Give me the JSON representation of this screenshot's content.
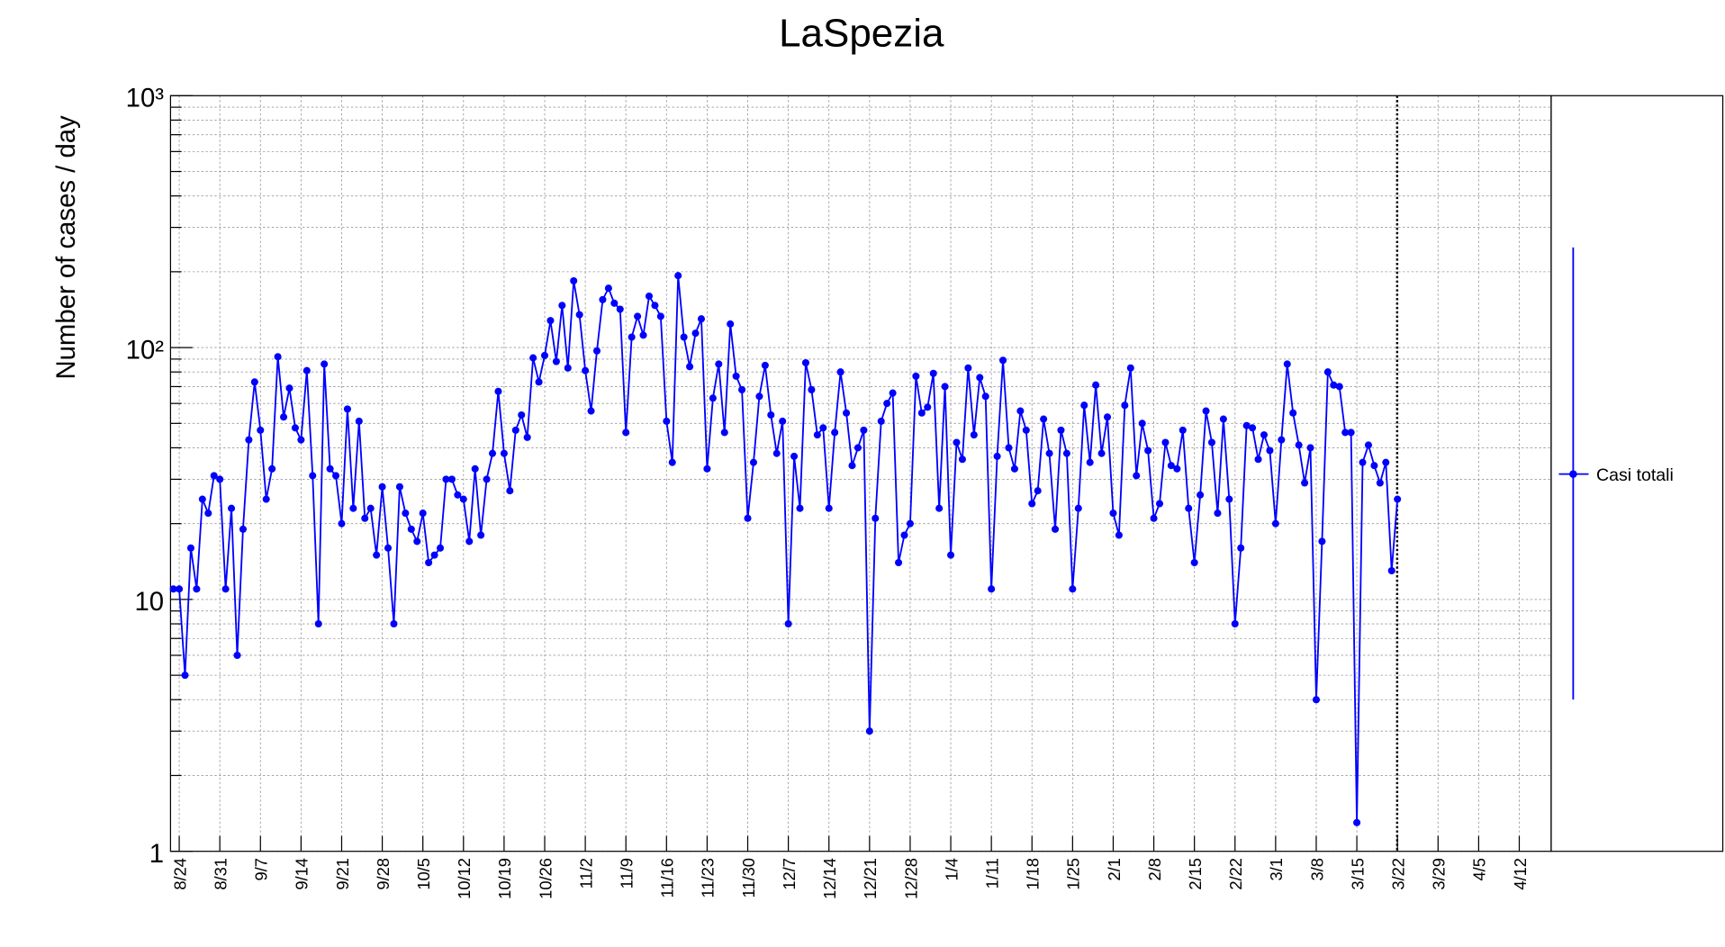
{
  "chart_data": {
    "type": "line",
    "title": "LaSpezia",
    "y_label": "Number of cases / day",
    "log_y": true,
    "grid": true,
    "ylim": [
      1,
      1000
    ],
    "yticks": [
      1,
      10,
      {
        "value": 100,
        "label": "10²"
      },
      {
        "value": 1000,
        "label": "10³"
      }
    ],
    "categories": [
      null,
      "8/24",
      null,
      null,
      null,
      null,
      null,
      null,
      "8/31",
      null,
      null,
      null,
      null,
      null,
      null,
      "9/7",
      null,
      null,
      null,
      null,
      null,
      null,
      "9/14",
      null,
      null,
      null,
      null,
      null,
      null,
      "9/21",
      null,
      null,
      null,
      null,
      null,
      null,
      "9/28",
      null,
      null,
      null,
      null,
      null,
      null,
      "10/5",
      null,
      null,
      null,
      null,
      null,
      null,
      "10/12",
      null,
      null,
      null,
      null,
      null,
      null,
      "10/19",
      null,
      null,
      null,
      null,
      null,
      null,
      "10/26",
      null,
      null,
      null,
      null,
      null,
      null,
      "11/2",
      null,
      null,
      null,
      null,
      null,
      null,
      "11/9",
      null,
      null,
      null,
      null,
      null,
      null,
      "11/16",
      null,
      null,
      null,
      null,
      null,
      null,
      "11/23",
      null,
      null,
      null,
      null,
      null,
      null,
      "11/30",
      null,
      null,
      null,
      null,
      null,
      null,
      "12/7",
      null,
      null,
      null,
      null,
      null,
      null,
      "12/14",
      null,
      null,
      null,
      null,
      null,
      null,
      "12/21",
      null,
      null,
      null,
      null,
      null,
      null,
      "12/28",
      null,
      null,
      null,
      null,
      null,
      null,
      "1/4",
      null,
      null,
      null,
      null,
      null,
      null,
      "1/11",
      null,
      null,
      null,
      null,
      null,
      null,
      "1/18",
      null,
      null,
      null,
      null,
      null,
      null,
      "1/25",
      null,
      null,
      null,
      null,
      null,
      null,
      "2/1",
      null,
      null,
      null,
      null,
      null,
      null,
      "2/8",
      null,
      null,
      null,
      null,
      null,
      null,
      "2/15",
      null,
      null,
      null,
      null,
      null,
      null,
      "2/22",
      null,
      null,
      null,
      null,
      null,
      null,
      "3/1",
      null,
      null,
      null,
      null,
      null,
      null,
      "3/8",
      null,
      null,
      null,
      null,
      null,
      null,
      "3/15",
      null,
      null,
      null,
      null,
      null,
      null,
      "3/22",
      null,
      null,
      null,
      null,
      null,
      null,
      "3/29",
      null,
      null,
      null,
      null,
      null,
      null,
      "4/5",
      null,
      null,
      null,
      null,
      null,
      null,
      "4/12",
      null,
      null,
      null,
      null,
      null
    ],
    "series": [
      {
        "name": "Casi totali",
        "color": "#0000ff",
        "values": [
          11,
          11,
          5,
          16,
          11,
          25,
          22,
          31,
          30,
          11,
          23,
          6,
          19,
          43,
          73,
          47,
          25,
          33,
          92,
          53,
          69,
          48,
          43,
          81,
          31,
          8,
          86,
          33,
          31,
          20,
          57,
          23,
          51,
          21,
          23,
          15,
          28,
          16,
          8,
          28,
          22,
          19,
          17,
          22,
          14,
          15,
          16,
          30,
          30,
          26,
          25,
          17,
          33,
          18,
          30,
          38,
          67,
          38,
          27,
          47,
          54,
          44,
          91,
          73,
          93,
          128,
          88,
          147,
          83,
          184,
          135,
          81,
          56,
          97,
          155,
          172,
          150,
          142,
          46,
          110,
          133,
          112,
          160,
          147,
          133,
          51,
          35,
          193,
          110,
          84,
          114,
          130,
          33,
          63,
          86,
          46,
          124,
          77,
          68,
          21,
          35,
          64,
          85,
          54,
          38,
          51,
          8,
          37,
          23,
          87,
          68,
          45,
          48,
          23,
          46,
          80,
          55,
          34,
          40,
          47,
          3,
          21,
          51,
          60,
          66,
          14,
          18,
          20,
          77,
          55,
          58,
          79,
          23,
          70,
          15,
          42,
          36,
          83,
          45,
          76,
          64,
          11,
          37,
          89,
          40,
          33,
          56,
          47,
          24,
          27,
          52,
          38,
          19,
          47,
          38,
          11,
          23,
          59,
          35,
          71,
          38,
          53,
          22,
          18,
          59,
          83,
          31,
          50,
          39,
          21,
          24,
          42,
          34,
          33,
          47,
          23,
          14,
          26,
          56,
          42,
          22,
          52,
          25,
          8,
          16,
          49,
          48,
          36,
          45,
          39,
          20,
          43,
          86,
          55,
          41,
          29,
          40,
          4,
          17,
          80,
          71,
          70,
          46,
          46,
          1.3,
          35,
          41,
          34,
          29,
          35,
          13,
          25,
          null,
          null,
          null,
          null,
          null,
          null,
          null,
          null,
          null,
          null,
          null,
          null,
          null,
          null,
          null,
          null,
          null,
          null,
          null,
          null,
          null,
          null,
          null,
          null,
          null,
          null
        ]
      }
    ]
  }
}
